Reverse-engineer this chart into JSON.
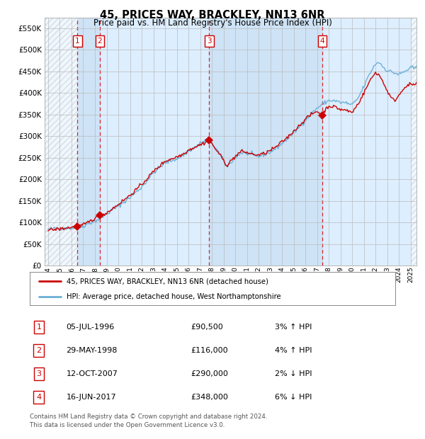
{
  "title": "45, PRICES WAY, BRACKLEY, NN13 6NR",
  "subtitle": "Price paid vs. HM Land Registry's House Price Index (HPI)",
  "legend_line1": "45, PRICES WAY, BRACKLEY, NN13 6NR (detached house)",
  "legend_line2": "HPI: Average price, detached house, West Northamptonshire",
  "footer1": "Contains HM Land Registry data © Crown copyright and database right 2024.",
  "footer2": "This data is licensed under the Open Government Licence v3.0.",
  "sales": [
    {
      "num": 1,
      "date": "05-JUL-1996",
      "price": 90500,
      "pct": "3%",
      "dir": "↑",
      "year": 1996.51
    },
    {
      "num": 2,
      "date": "29-MAY-1998",
      "price": 116000,
      "pct": "4%",
      "dir": "↑",
      "year": 1998.41
    },
    {
      "num": 3,
      "date": "12-OCT-2007",
      "price": 290000,
      "pct": "2%",
      "dir": "↓",
      "year": 2007.78
    },
    {
      "num": 4,
      "date": "16-JUN-2017",
      "price": 348000,
      "pct": "6%",
      "dir": "↓",
      "year": 2017.45
    }
  ],
  "ylim": [
    0,
    575000
  ],
  "yticks": [
    0,
    50000,
    100000,
    150000,
    200000,
    250000,
    300000,
    350000,
    400000,
    450000,
    500000,
    550000
  ],
  "ytick_labels": [
    "£0",
    "£50K",
    "£100K",
    "£150K",
    "£200K",
    "£250K",
    "£300K",
    "£350K",
    "£400K",
    "£450K",
    "£500K",
    "£550K"
  ],
  "xlim_start": 1993.7,
  "xlim_end": 2025.5,
  "xtick_years": [
    1994,
    1995,
    1996,
    1997,
    1998,
    1999,
    2000,
    2001,
    2002,
    2003,
    2004,
    2005,
    2006,
    2007,
    2008,
    2009,
    2010,
    2011,
    2012,
    2013,
    2014,
    2015,
    2016,
    2017,
    2018,
    2019,
    2020,
    2021,
    2022,
    2023,
    2024,
    2025
  ],
  "hpi_color": "#6aaed6",
  "price_color": "#cc0000",
  "sale_marker_color": "#cc0000",
  "grid_color": "#bbbbbb",
  "bg_color": "#ffffff",
  "plot_bg_color": "#ddeeff",
  "dashed_line_color": "#dd0000",
  "number_box_color": "#cc0000"
}
